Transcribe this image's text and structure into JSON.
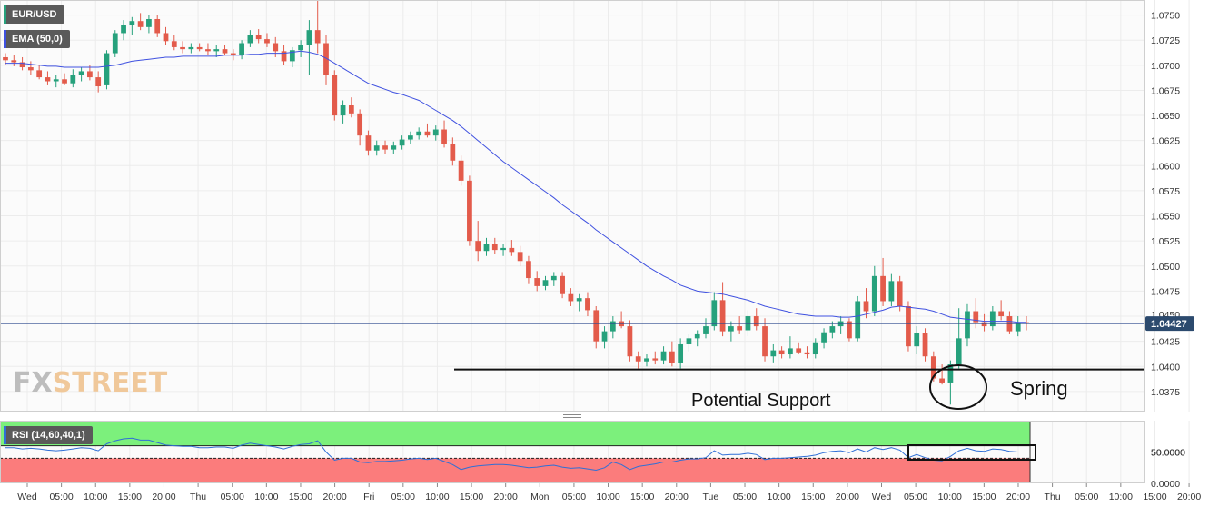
{
  "labels": {
    "symbol": "EUR/USD",
    "ema": "EMA (50,0)",
    "rsi": "RSI (14,60,40,1)",
    "price_tag": "1.04427",
    "rsi_tag": "50.0000",
    "support_annotation": "Potential Support",
    "spring_annotation": "Spring",
    "watermark_a": "FX",
    "watermark_b": "STREET"
  },
  "colors": {
    "up": "#26a17c",
    "down": "#e35b4b",
    "ema": "#3f51e0",
    "rsi_line": "#2f6fd6",
    "overbought_zone": "#7cf07c",
    "oversold_zone": "#fb7c7c",
    "price_tag_bg": "#2c4a6e"
  },
  "chart_data": [
    {
      "type": "candlestick",
      "title": "EUR/USD",
      "ylim": [
        1.0355,
        1.0765
      ],
      "y_ticks": [
        1.0375,
        1.04,
        1.0425,
        1.045,
        1.0475,
        1.05,
        1.0525,
        1.055,
        1.0575,
        1.06,
        1.0625,
        1.065,
        1.0675,
        1.07,
        1.0725,
        1.075
      ],
      "x_tick_labels": [
        "Wed",
        "05:00",
        "10:00",
        "15:00",
        "20:00",
        "Thu",
        "05:00",
        "10:00",
        "15:00",
        "20:00",
        "Fri",
        "05:00",
        "10:00",
        "15:00",
        "20:00",
        "Mon",
        "05:00",
        "10:00",
        "15:00",
        "20:00",
        "Tue",
        "05:00",
        "10:00",
        "15:00",
        "20:00",
        "Wed",
        "05:00",
        "10:00",
        "15:00",
        "20:00",
        "Thu",
        "05:00",
        "10:00",
        "15:00",
        "20:00"
      ],
      "last_price": 1.04427,
      "support_level": 1.0397,
      "candles": [
        [
          1.0708,
          1.0712,
          1.07,
          1.0705
        ],
        [
          1.0705,
          1.071,
          1.0699,
          1.0703
        ],
        [
          1.0703,
          1.0708,
          1.0695,
          1.0698
        ],
        [
          1.0698,
          1.0704,
          1.069,
          1.0695
        ],
        [
          1.0695,
          1.07,
          1.0686,
          1.0688
        ],
        [
          1.0688,
          1.0694,
          1.068,
          1.0684
        ],
        [
          1.0684,
          1.069,
          1.0678,
          1.0686
        ],
        [
          1.0686,
          1.0692,
          1.068,
          1.0682
        ],
        [
          1.0682,
          1.0696,
          1.0678,
          1.069
        ],
        [
          1.069,
          1.0698,
          1.0684,
          1.0694
        ],
        [
          1.0694,
          1.07,
          1.0685,
          1.0688
        ],
        [
          1.0688,
          1.0694,
          1.0673,
          1.0679
        ],
        [
          1.068,
          1.0715,
          1.0676,
          1.0712
        ],
        [
          1.0712,
          1.0735,
          1.0708,
          1.0732
        ],
        [
          1.0732,
          1.0745,
          1.0725,
          1.074
        ],
        [
          1.074,
          1.0748,
          1.073,
          1.0744
        ],
        [
          1.0744,
          1.0752,
          1.0735,
          1.0738
        ],
        [
          1.0738,
          1.075,
          1.0732,
          1.0746
        ],
        [
          1.0746,
          1.075,
          1.0728,
          1.0732
        ],
        [
          1.0732,
          1.0738,
          1.072,
          1.0724
        ],
        [
          1.0724,
          1.073,
          1.0715,
          1.0718
        ],
        [
          1.0718,
          1.0724,
          1.0712,
          1.0716
        ],
        [
          1.0716,
          1.0722,
          1.0712,
          1.0718
        ],
        [
          1.0718,
          1.0722,
          1.0714,
          1.0716
        ],
        [
          1.0716,
          1.0722,
          1.071,
          1.0714
        ],
        [
          1.0714,
          1.072,
          1.0708,
          1.0716
        ],
        [
          1.0716,
          1.072,
          1.071,
          1.0712
        ],
        [
          1.0712,
          1.0716,
          1.0705,
          1.071
        ],
        [
          1.071,
          1.0725,
          1.0706,
          1.0722
        ],
        [
          1.0722,
          1.0735,
          1.0718,
          1.073
        ],
        [
          1.073,
          1.0736,
          1.0722,
          1.0726
        ],
        [
          1.0726,
          1.0732,
          1.0718,
          1.0722
        ],
        [
          1.0722,
          1.0728,
          1.0708,
          1.0714
        ],
        [
          1.0714,
          1.072,
          1.07,
          1.0704
        ],
        [
          1.0704,
          1.0718,
          1.0698,
          1.0715
        ],
        [
          1.0715,
          1.0725,
          1.0708,
          1.072
        ],
        [
          1.072,
          1.0745,
          1.069,
          1.0735
        ],
        [
          1.0735,
          1.0768,
          1.0712,
          1.0722
        ],
        [
          1.0722,
          1.073,
          1.068,
          1.069
        ],
        [
          1.069,
          1.0695,
          1.0645,
          1.065
        ],
        [
          1.065,
          1.0665,
          1.0642,
          1.066
        ],
        [
          1.066,
          1.0668,
          1.0648,
          1.0652
        ],
        [
          1.0652,
          1.0656,
          1.062,
          1.063
        ],
        [
          1.063,
          1.0635,
          1.061,
          1.0615
        ],
        [
          1.0615,
          1.0625,
          1.061,
          1.062
        ],
        [
          1.062,
          1.0625,
          1.0612,
          1.0616
        ],
        [
          1.0616,
          1.0624,
          1.0612,
          1.062
        ],
        [
          1.062,
          1.063,
          1.0616,
          1.0626
        ],
        [
          1.0626,
          1.0634,
          1.0622,
          1.063
        ],
        [
          1.063,
          1.0638,
          1.0626,
          1.0634
        ],
        [
          1.0634,
          1.0642,
          1.0628,
          1.063
        ],
        [
          1.063,
          1.064,
          1.0625,
          1.0636
        ],
        [
          1.0636,
          1.0645,
          1.0618,
          1.0622
        ],
        [
          1.0622,
          1.0628,
          1.06,
          1.0605
        ],
        [
          1.0605,
          1.061,
          1.058,
          1.0585
        ],
        [
          1.0585,
          1.059,
          1.052,
          1.0525
        ],
        [
          1.0525,
          1.0545,
          1.0505,
          1.0515
        ],
        [
          1.0515,
          1.0528,
          1.051,
          1.0522
        ],
        [
          1.0522,
          1.0528,
          1.0512,
          1.0516
        ],
        [
          1.0516,
          1.0522,
          1.051,
          1.0518
        ],
        [
          1.0518,
          1.0526,
          1.051,
          1.0514
        ],
        [
          1.0514,
          1.052,
          1.05,
          1.0505
        ],
        [
          1.0505,
          1.051,
          1.0482,
          1.0488
        ],
        [
          1.0488,
          1.0495,
          1.0475,
          1.048
        ],
        [
          1.048,
          1.049,
          1.0476,
          1.0486
        ],
        [
          1.0486,
          1.0494,
          1.048,
          1.049
        ],
        [
          1.049,
          1.0494,
          1.0468,
          1.0472
        ],
        [
          1.0472,
          1.0478,
          1.046,
          1.0465
        ],
        [
          1.0465,
          1.0472,
          1.0455,
          1.0468
        ],
        [
          1.0468,
          1.0474,
          1.045,
          1.0456
        ],
        [
          1.0456,
          1.046,
          1.0418,
          1.0425
        ],
        [
          1.0425,
          1.044,
          1.0418,
          1.0435
        ],
        [
          1.0435,
          1.045,
          1.0428,
          1.0445
        ],
        [
          1.0445,
          1.0455,
          1.0438,
          1.044
        ],
        [
          1.044,
          1.0446,
          1.0405,
          1.041
        ],
        [
          1.041,
          1.0415,
          1.0398,
          1.0405
        ],
        [
          1.0405,
          1.0412,
          1.04,
          1.0408
        ],
        [
          1.0408,
          1.0415,
          1.0402,
          1.0406
        ],
        [
          1.0406,
          1.042,
          1.0402,
          1.0415
        ],
        [
          1.0415,
          1.0425,
          1.04,
          1.0403
        ],
        [
          1.0403,
          1.0428,
          1.0398,
          1.0422
        ],
        [
          1.0422,
          1.0432,
          1.0415,
          1.0428
        ],
        [
          1.0428,
          1.0436,
          1.042,
          1.0432
        ],
        [
          1.0432,
          1.0448,
          1.0428,
          1.044
        ],
        [
          1.044,
          1.0474,
          1.0436,
          1.0466
        ],
        [
          1.0466,
          1.0484,
          1.043,
          1.0435
        ],
        [
          1.0435,
          1.0445,
          1.0425,
          1.044
        ],
        [
          1.044,
          1.045,
          1.0432,
          1.0436
        ],
        [
          1.0436,
          1.0456,
          1.043,
          1.045
        ],
        [
          1.045,
          1.0458,
          1.0436,
          1.044
        ],
        [
          1.044,
          1.0448,
          1.0405,
          1.041
        ],
        [
          1.041,
          1.0422,
          1.0404,
          1.0416
        ],
        [
          1.0416,
          1.042,
          1.0408,
          1.0412
        ],
        [
          1.0412,
          1.043,
          1.0408,
          1.0418
        ],
        [
          1.0418,
          1.0424,
          1.0412,
          1.0414
        ],
        [
          1.0414,
          1.042,
          1.0408,
          1.0412
        ],
        [
          1.0412,
          1.0428,
          1.0408,
          1.0424
        ],
        [
          1.0424,
          1.0438,
          1.0418,
          1.0434
        ],
        [
          1.0434,
          1.0445,
          1.0428,
          1.044
        ],
        [
          1.044,
          1.045,
          1.0432,
          1.0445
        ],
        [
          1.0445,
          1.0448,
          1.0425,
          1.0428
        ],
        [
          1.0428,
          1.047,
          1.0425,
          1.0465
        ],
        [
          1.0465,
          1.0478,
          1.0448,
          1.0455
        ],
        [
          1.0455,
          1.05,
          1.045,
          1.049
        ],
        [
          1.049,
          1.0508,
          1.046,
          1.0465
        ],
        [
          1.0465,
          1.0492,
          1.046,
          1.0485
        ],
        [
          1.0485,
          1.049,
          1.0455,
          1.046
        ],
        [
          1.046,
          1.0465,
          1.0415,
          1.042
        ],
        [
          1.042,
          1.044,
          1.0412,
          1.0433
        ],
        [
          1.0433,
          1.0438,
          1.0405,
          1.041
        ],
        [
          1.041,
          1.0415,
          1.0385,
          1.0388
        ],
        [
          1.0388,
          1.0402,
          1.0382,
          1.0384
        ],
        [
          1.0384,
          1.0406,
          1.0362,
          1.0402
        ],
        [
          1.0402,
          1.0458,
          1.0398,
          1.0428
        ],
        [
          1.0428,
          1.0462,
          1.042,
          1.0455
        ],
        [
          1.0455,
          1.0468,
          1.0438,
          1.0444
        ],
        [
          1.0444,
          1.0452,
          1.0435,
          1.044
        ],
        [
          1.044,
          1.046,
          1.0436,
          1.0455
        ],
        [
          1.0455,
          1.0466,
          1.0446,
          1.045
        ],
        [
          1.045,
          1.0455,
          1.0432,
          1.0435
        ],
        [
          1.0435,
          1.045,
          1.043,
          1.0444
        ],
        [
          1.0444,
          1.045,
          1.0436,
          1.0443
        ]
      ],
      "ema": [
        1.0702,
        1.0702,
        1.0702,
        1.0701,
        1.07,
        1.0699,
        1.0699,
        1.0698,
        1.0698,
        1.0698,
        1.0698,
        1.0698,
        1.0699,
        1.07,
        1.0702,
        1.0704,
        1.0705,
        1.0706,
        1.0707,
        1.0708,
        1.0708,
        1.0709,
        1.0709,
        1.0709,
        1.0709,
        1.0709,
        1.071,
        1.071,
        1.071,
        1.0711,
        1.0711,
        1.0712,
        1.0712,
        1.0712,
        1.0713,
        1.0714,
        1.0713,
        1.0711,
        1.0707,
        1.0702,
        1.0697,
        1.0692,
        1.0687,
        1.0682,
        1.0679,
        1.0676,
        1.0673,
        1.0671,
        1.0668,
        1.0665,
        1.066,
        1.0655,
        1.065,
        1.0645,
        1.0639,
        1.0632,
        1.0625,
        1.0618,
        1.0611,
        1.0604,
        1.0598,
        1.0592,
        1.0586,
        1.058,
        1.0574,
        1.0568,
        1.0561,
        1.0555,
        1.0549,
        1.0543,
        1.0536,
        1.053,
        1.0524,
        1.0518,
        1.0512,
        1.0506,
        1.05,
        1.0495,
        1.049,
        1.0486,
        1.0481,
        1.0478,
        1.0475,
        1.0474,
        1.0473,
        1.0472,
        1.047,
        1.0468,
        1.0466,
        1.0463,
        1.046,
        1.0458,
        1.0456,
        1.0454,
        1.0452,
        1.0451,
        1.045,
        1.045,
        1.045,
        1.0449,
        1.0449,
        1.045,
        1.0452,
        1.0454,
        1.0456,
        1.0459,
        1.046,
        1.0459,
        1.0458,
        1.0457,
        1.0455,
        1.0452,
        1.0449,
        1.0448,
        1.0447,
        1.0446,
        1.0445,
        1.0445,
        1.0445,
        1.0445,
        1.0444,
        1.0444
      ]
    },
    {
      "type": "line",
      "title": "RSI (14,60,40,1)",
      "ylim": [
        0,
        100
      ],
      "y_ticks": [
        0,
        50
      ],
      "upper_band": 60,
      "lower_band": 40,
      "last_value": 50.0,
      "values": [
        57,
        57,
        55,
        56,
        55,
        53,
        52,
        53,
        55,
        57,
        56,
        52,
        63,
        68,
        71,
        72,
        69,
        69,
        65,
        61,
        60,
        59,
        59,
        57,
        57,
        58,
        58,
        56,
        61,
        64,
        62,
        60,
        58,
        55,
        59,
        62,
        63,
        68,
        50,
        37,
        40,
        40,
        34,
        33,
        35,
        35,
        36,
        37,
        39,
        40,
        38,
        40,
        35,
        30,
        22,
        26,
        28,
        29,
        30,
        30,
        29,
        27,
        25,
        26,
        28,
        29,
        26,
        24,
        25,
        23,
        21,
        25,
        34,
        30,
        22,
        27,
        29,
        31,
        34,
        34,
        37,
        39,
        39,
        41,
        52,
        45,
        46,
        46,
        48,
        46,
        38,
        40,
        40,
        41,
        42,
        43,
        45,
        49,
        51,
        52,
        49,
        55,
        50,
        57,
        54,
        57,
        53,
        41,
        46,
        41,
        37,
        36,
        43,
        52,
        56,
        52,
        51,
        55,
        54,
        51,
        50,
        50
      ]
    }
  ]
}
